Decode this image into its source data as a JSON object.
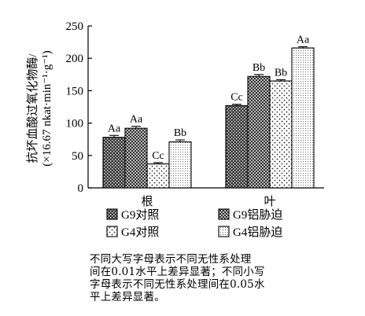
{
  "chart_data": {
    "type": "bar",
    "categories": [
      "根",
      "叶"
    ],
    "series": [
      {
        "name": "G9对照",
        "values": [
          78,
          127
        ],
        "errors": [
          3,
          2
        ],
        "letters": [
          "Aa",
          "Cc"
        ]
      },
      {
        "name": "G9铝胁迫",
        "values": [
          92,
          172
        ],
        "errors": [
          3,
          3
        ],
        "letters": [
          "Aa",
          "Bb"
        ]
      },
      {
        "name": "G4对照",
        "values": [
          37,
          165
        ],
        "errors": [
          2,
          2
        ],
        "letters": [
          "Cc",
          "Bb"
        ]
      },
      {
        "name": "G4铝胁迫",
        "values": [
          71,
          216
        ],
        "errors": [
          3,
          2
        ],
        "letters": [
          "Bb",
          "Aa"
        ]
      }
    ],
    "ylabel": "抗坏血酸过氧化物酶/",
    "ylabel_unit": "(×16.67 nkat·min⁻¹·g⁻¹)",
    "yticks": [
      0,
      50,
      100,
      150,
      200,
      250
    ],
    "ylim": [
      0,
      250
    ],
    "legend_position": "bottom",
    "patterns": [
      "dark-dots",
      "crosshatch",
      "sparse-dots",
      "fine-dots"
    ]
  },
  "footnote": {
    "lines": [
      "不同大写字母表示不同无性系处理",
      "间在0.01水平上差异显著；不同小写",
      "字母表示不同无性系处理间在0.05水",
      "平上差异显著。"
    ]
  }
}
